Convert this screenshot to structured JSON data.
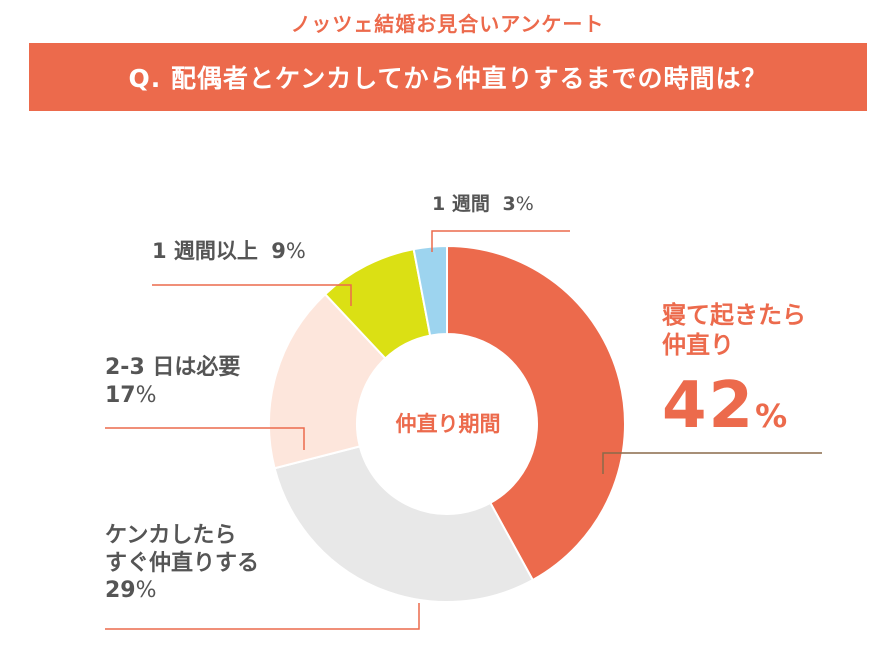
{
  "brand": "ノッツェ結婚お見合いアンケート",
  "question": "Q. 配偶者とケンカしてから仲直りするまでの時間は？",
  "chart_data": {
    "type": "pie",
    "title": "Q. 配偶者とケンカしてから仲直りするまでの時間は？",
    "center_label": "仲直り期間",
    "unit": "%",
    "slices": [
      {
        "label": "寝て起きたら仲直り",
        "value": 42,
        "color": "#ec6a4c"
      },
      {
        "label": "ケンカしたらすぐ仲直りする",
        "value": 29,
        "color": "#e8e8e8"
      },
      {
        "label": "2-3 日は必要",
        "value": 17,
        "color": "#fde6dc"
      },
      {
        "label": "1 週間以上",
        "value": 9,
        "color": "#dbe014"
      },
      {
        "label": "1 週間",
        "value": 3,
        "color": "#9dd4ef"
      }
    ]
  },
  "labels": {
    "s0_line1": "寝て起きたら",
    "s0_line2": "仲直り",
    "s0_value": "42",
    "s1_line1": "ケンカしたら",
    "s1_line2": "すぐ仲直りする",
    "s1_value": "29",
    "s2_line1": "2-3 日は必要",
    "s2_value": "17",
    "s3_line1": "1 週間以上",
    "s3_value": "9",
    "s4_line1": "1 週間",
    "s4_value": "3",
    "pct": "%"
  }
}
